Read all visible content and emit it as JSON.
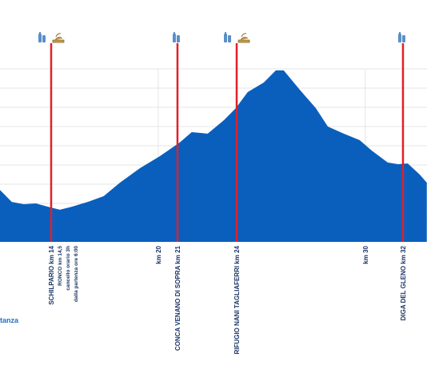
{
  "chart_data": {
    "type": "area",
    "color": "#0a5fbd",
    "x": [
      12.36,
      12.93,
      13.51,
      14.09,
      14.67,
      15.25,
      15.83,
      16.6,
      17.37,
      18.15,
      19.11,
      20.08,
      21.04,
      21.62,
      22.39,
      23.17,
      23.75,
      24.32,
      25.1,
      25.68,
      26.06,
      26.83,
      27.61,
      28.19,
      28.96,
      29.73,
      30.31,
      31.08,
      31.58,
      32.05,
      32.63,
      32.97
    ],
    "series": [
      {
        "values": [
          2.7,
          2.08,
          1.96,
          2.0,
          1.83,
          1.67,
          1.83,
          2.08,
          2.38,
          3.08,
          3.83,
          4.46,
          5.17,
          5.71,
          5.63,
          6.33,
          6.96,
          7.79,
          8.29,
          8.92,
          8.92,
          7.92,
          6.96,
          6.0,
          5.63,
          5.29,
          4.75,
          4.13,
          4.04,
          4.08,
          3.5,
          3.08
        ]
      }
    ],
    "xlim": [
      12.36,
      32.98
    ],
    "xticks": [
      {
        "value": 20,
        "label": "km 20"
      },
      {
        "value": 30,
        "label": "km 30"
      }
    ],
    "ylim": [
      0,
      9
    ],
    "yticks": [
      1,
      2,
      3,
      4,
      5,
      6,
      7,
      8,
      9
    ],
    "grid": true,
    "marker_color": "#e0202a",
    "markers": [
      {
        "x": 14.83,
        "food": true,
        "labels": [
          "SCHILPARIO km 14",
          "RONCO  km 14,5",
          "cancello orario 3h",
          "dalla partenza ore 6:00"
        ]
      },
      {
        "x": 20.93,
        "food": false,
        "labels": [
          "CONCA VENANO DI SOPRA km 21"
        ]
      },
      {
        "x": 23.79,
        "food": true,
        "labels": [
          "RIFUGIO NANI TAGLIAFERRI  km 24"
        ]
      },
      {
        "x": 31.82,
        "food": false,
        "labels": [
          "DIGA DEL GLENO km 32"
        ]
      }
    ],
    "axis_label": "tanza"
  }
}
